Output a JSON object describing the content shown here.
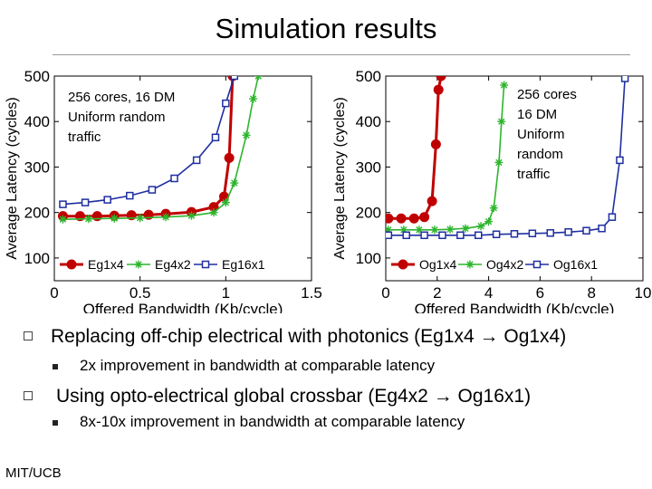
{
  "slide": {
    "title": "Simulation results",
    "bullets": [
      {
        "text": "Replacing off-chip electrical with photonics (Eg1x4 → Og1x4)",
        "sub": "2x improvement in bandwidth at comparable latency"
      },
      {
        "text": "Using opto-electrical global crossbar  (Eg4x2 → Og16x1)",
        "sub": "8x-10x improvement in bandwidth at comparable latency"
      }
    ],
    "footer": "MIT/UCB"
  },
  "chart_data": [
    {
      "type": "line",
      "annotation": [
        "256 cores, 16 DM",
        "Uniform random",
        "traffic"
      ],
      "xlabel": "Offered Bandwidth (Kb/cycle)",
      "ylabel": "Average Latency (cycles)",
      "xlim": [
        0,
        1.5
      ],
      "ylim": [
        50,
        500
      ],
      "xticks": [
        "0",
        "0.5",
        "1",
        "1.5"
      ],
      "yticks": [
        "100",
        "200",
        "300",
        "400",
        "500"
      ],
      "grid": false,
      "legend": "bottom",
      "series": [
        {
          "name": "Eg1x4",
          "color": "#c00000",
          "marker": "circle",
          "x": [
            0.05,
            0.15,
            0.25,
            0.35,
            0.45,
            0.55,
            0.65,
            0.8,
            0.93,
            0.99,
            1.02,
            1.04
          ],
          "y": [
            192,
            192,
            192,
            193,
            194,
            195,
            197,
            201,
            212,
            235,
            320,
            500
          ]
        },
        {
          "name": "Eg4x2",
          "color": "#2db52d",
          "marker": "star",
          "x": [
            0.05,
            0.2,
            0.35,
            0.5,
            0.65,
            0.8,
            0.93,
            1.0,
            1.05,
            1.12,
            1.16,
            1.19
          ],
          "y": [
            185,
            186,
            187,
            188,
            190,
            193,
            200,
            222,
            265,
            370,
            450,
            500
          ]
        },
        {
          "name": "Eg16x1",
          "color": "#1f2fa0",
          "marker": "square",
          "x": [
            0.05,
            0.18,
            0.31,
            0.44,
            0.57,
            0.7,
            0.83,
            0.94,
            1.0,
            1.05
          ],
          "y": [
            218,
            222,
            228,
            237,
            250,
            275,
            315,
            365,
            440,
            500
          ]
        }
      ]
    },
    {
      "type": "line",
      "annotation": [
        "256 cores",
        "16 DM",
        "Uniform",
        "random",
        "traffic"
      ],
      "xlabel": "Offered Bandwidth (Kb/cycle)",
      "ylabel": "Average Latency (cycles)",
      "xlim": [
        0,
        10
      ],
      "ylim": [
        50,
        500
      ],
      "xticks": [
        "0",
        "2",
        "4",
        "6",
        "8",
        "10"
      ],
      "yticks": [
        "100",
        "200",
        "300",
        "400",
        "500"
      ],
      "grid": false,
      "legend": "bottom",
      "series": [
        {
          "name": "Og1x4",
          "color": "#c00000",
          "marker": "circle",
          "x": [
            0.1,
            0.6,
            1.1,
            1.5,
            1.8,
            1.95,
            2.05,
            2.15
          ],
          "y": [
            187,
            187,
            187,
            190,
            225,
            350,
            470,
            500
          ]
        },
        {
          "name": "Og4x2",
          "color": "#2db52d",
          "marker": "star",
          "x": [
            0.1,
            0.7,
            1.3,
            1.9,
            2.5,
            3.1,
            3.7,
            4.0,
            4.2,
            4.4,
            4.5,
            4.6
          ],
          "y": [
            162,
            162,
            162,
            162,
            163,
            165,
            170,
            180,
            210,
            310,
            400,
            480
          ]
        },
        {
          "name": "Og16x1",
          "color": "#1f2fa0",
          "marker": "square",
          "x": [
            0.1,
            0.8,
            1.5,
            2.2,
            2.9,
            3.6,
            4.3,
            5.0,
            5.7,
            6.4,
            7.1,
            7.8,
            8.4,
            8.8,
            9.1,
            9.3
          ],
          "y": [
            150,
            150,
            150,
            150,
            150,
            150,
            152,
            153,
            154,
            155,
            157,
            160,
            165,
            190,
            315,
            495
          ]
        }
      ]
    }
  ]
}
